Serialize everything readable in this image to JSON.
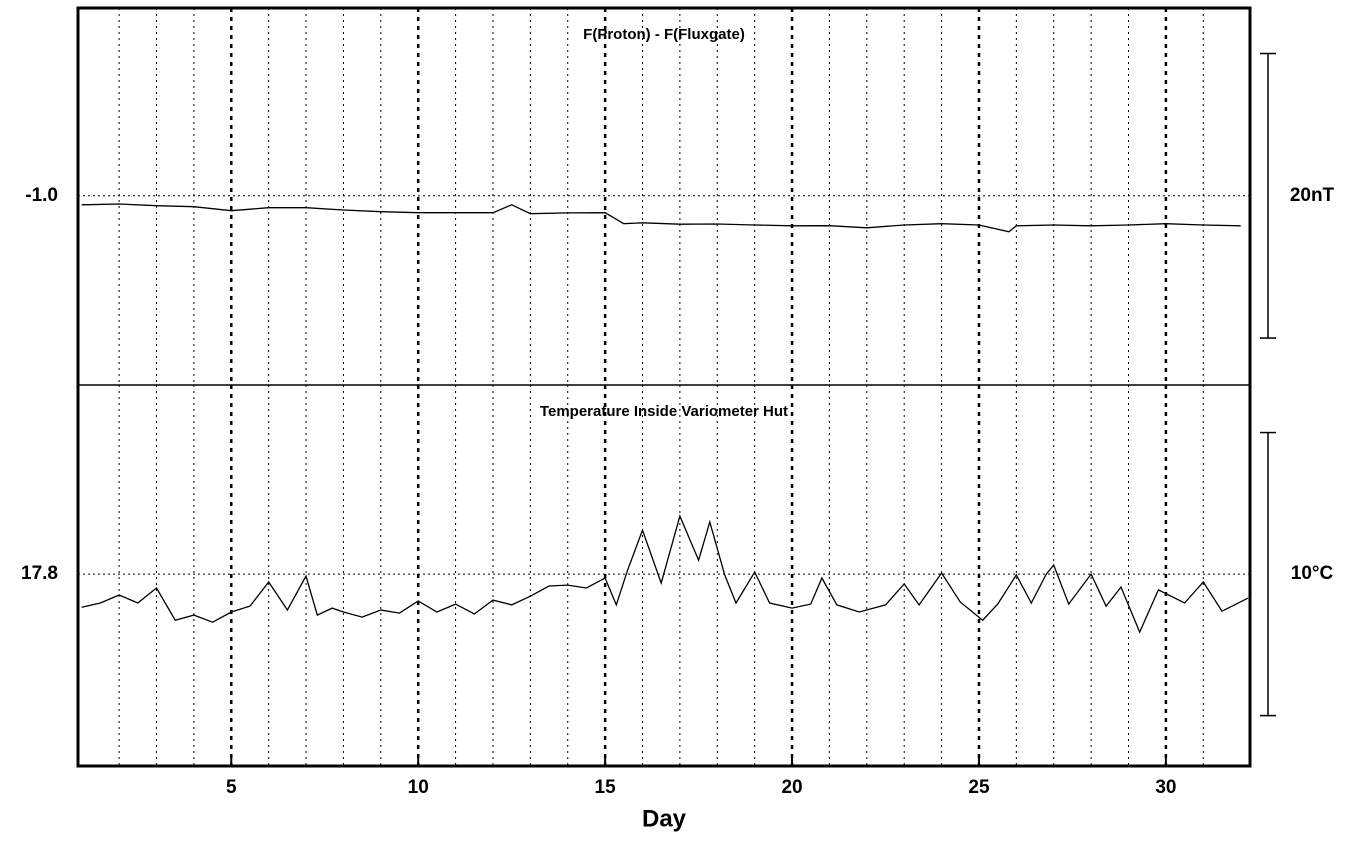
{
  "chart_data": [
    {
      "type": "line",
      "title": "F(Proton) - F(Fluxgate)",
      "xlim": [
        0.9,
        32.25
      ],
      "xticks": [
        5,
        10,
        15,
        20,
        25,
        30
      ],
      "xgrid_minor": [
        2,
        3,
        4,
        6,
        7,
        8,
        9,
        11,
        12,
        13,
        14,
        16,
        17,
        18,
        19,
        21,
        22,
        23,
        24,
        26,
        27,
        28,
        29,
        31
      ],
      "ylim": [
        -14.3,
        12.2
      ],
      "yticks": [
        {
          "value": -1,
          "label": "-1.0"
        }
      ],
      "scale_bar": {
        "value": 20,
        "label": "20nT"
      },
      "x": [
        1,
        2,
        3,
        4,
        5,
        6,
        7,
        8,
        9,
        10,
        11,
        12,
        12.5,
        13,
        14,
        15,
        15.5,
        16,
        17,
        18,
        19,
        20,
        21,
        22,
        23,
        24,
        25,
        25.8,
        26,
        27,
        28,
        29,
        30,
        31,
        32
      ],
      "series": [
        {
          "name": "F(Proton) - F(Fluxgate)",
          "color": "#000000",
          "values": [
            -1.63,
            -1.58,
            -1.7,
            -1.77,
            -2.05,
            -1.84,
            -1.84,
            -2.0,
            -2.12,
            -2.19,
            -2.19,
            -2.19,
            -1.63,
            -2.26,
            -2.2,
            -2.19,
            -2.96,
            -2.9,
            -3.0,
            -2.98,
            -3.05,
            -3.11,
            -3.1,
            -3.25,
            -3.05,
            -2.96,
            -3.05,
            -3.53,
            -3.11,
            -3.05,
            -3.11,
            -3.05,
            -2.96,
            -3.05,
            -3.11
          ]
        }
      ]
    },
    {
      "type": "line",
      "title": "Temperature Inside Variometer Hut",
      "xlabel": "Day",
      "xlim": [
        0.9,
        32.25
      ],
      "xticks": [
        5,
        10,
        15,
        20,
        25,
        30
      ],
      "xgrid_minor": [
        2,
        3,
        4,
        6,
        7,
        8,
        9,
        11,
        12,
        13,
        14,
        16,
        17,
        18,
        19,
        21,
        22,
        23,
        24,
        26,
        27,
        28,
        29,
        31
      ],
      "ylim": [
        11.02,
        24.48
      ],
      "yticks": [
        17.8
      ],
      "scale_bar": {
        "value": 10,
        "label": "10°C"
      },
      "x": [
        1,
        1.5,
        2,
        2.5,
        3,
        3.5,
        4,
        4.5,
        5,
        5.5,
        6,
        6.5,
        7,
        7.3,
        7.7,
        8,
        8.5,
        9,
        9.5,
        10,
        10.5,
        11,
        11.5,
        12,
        12.5,
        13,
        13.5,
        14,
        14.5,
        15,
        15.3,
        15.6,
        16,
        16.5,
        17,
        17.5,
        17.8,
        18.2,
        18.5,
        19,
        19.4,
        20,
        20.5,
        20.8,
        21.2,
        21.8,
        22.5,
        23,
        23.4,
        24,
        24.5,
        25.1,
        25.5,
        26,
        26.4,
        26.8,
        27,
        27.4,
        28,
        28.4,
        28.8,
        29.3,
        29.8,
        30.5,
        31,
        31.5,
        32.2
      ],
      "series": [
        {
          "name": "Temperature Inside Variometer Hut",
          "color": "#000000",
          "values": [
            16.63,
            16.78,
            17.06,
            16.78,
            17.31,
            16.17,
            16.35,
            16.1,
            16.46,
            16.67,
            17.52,
            16.53,
            17.73,
            16.35,
            16.6,
            16.46,
            16.28,
            16.53,
            16.42,
            16.85,
            16.46,
            16.74,
            16.39,
            16.88,
            16.71,
            17.02,
            17.38,
            17.41,
            17.31,
            17.66,
            16.71,
            17.94,
            19.35,
            17.48,
            19.85,
            18.29,
            19.64,
            17.77,
            16.78,
            17.87,
            16.78,
            16.6,
            16.74,
            17.66,
            16.71,
            16.46,
            16.71,
            17.45,
            16.71,
            17.84,
            16.81,
            16.17,
            16.74,
            17.77,
            16.78,
            17.8,
            18.12,
            16.74,
            17.8,
            16.67,
            17.34,
            15.75,
            17.24,
            16.78,
            17.52,
            16.49,
            16.95
          ]
        }
      ]
    }
  ]
}
